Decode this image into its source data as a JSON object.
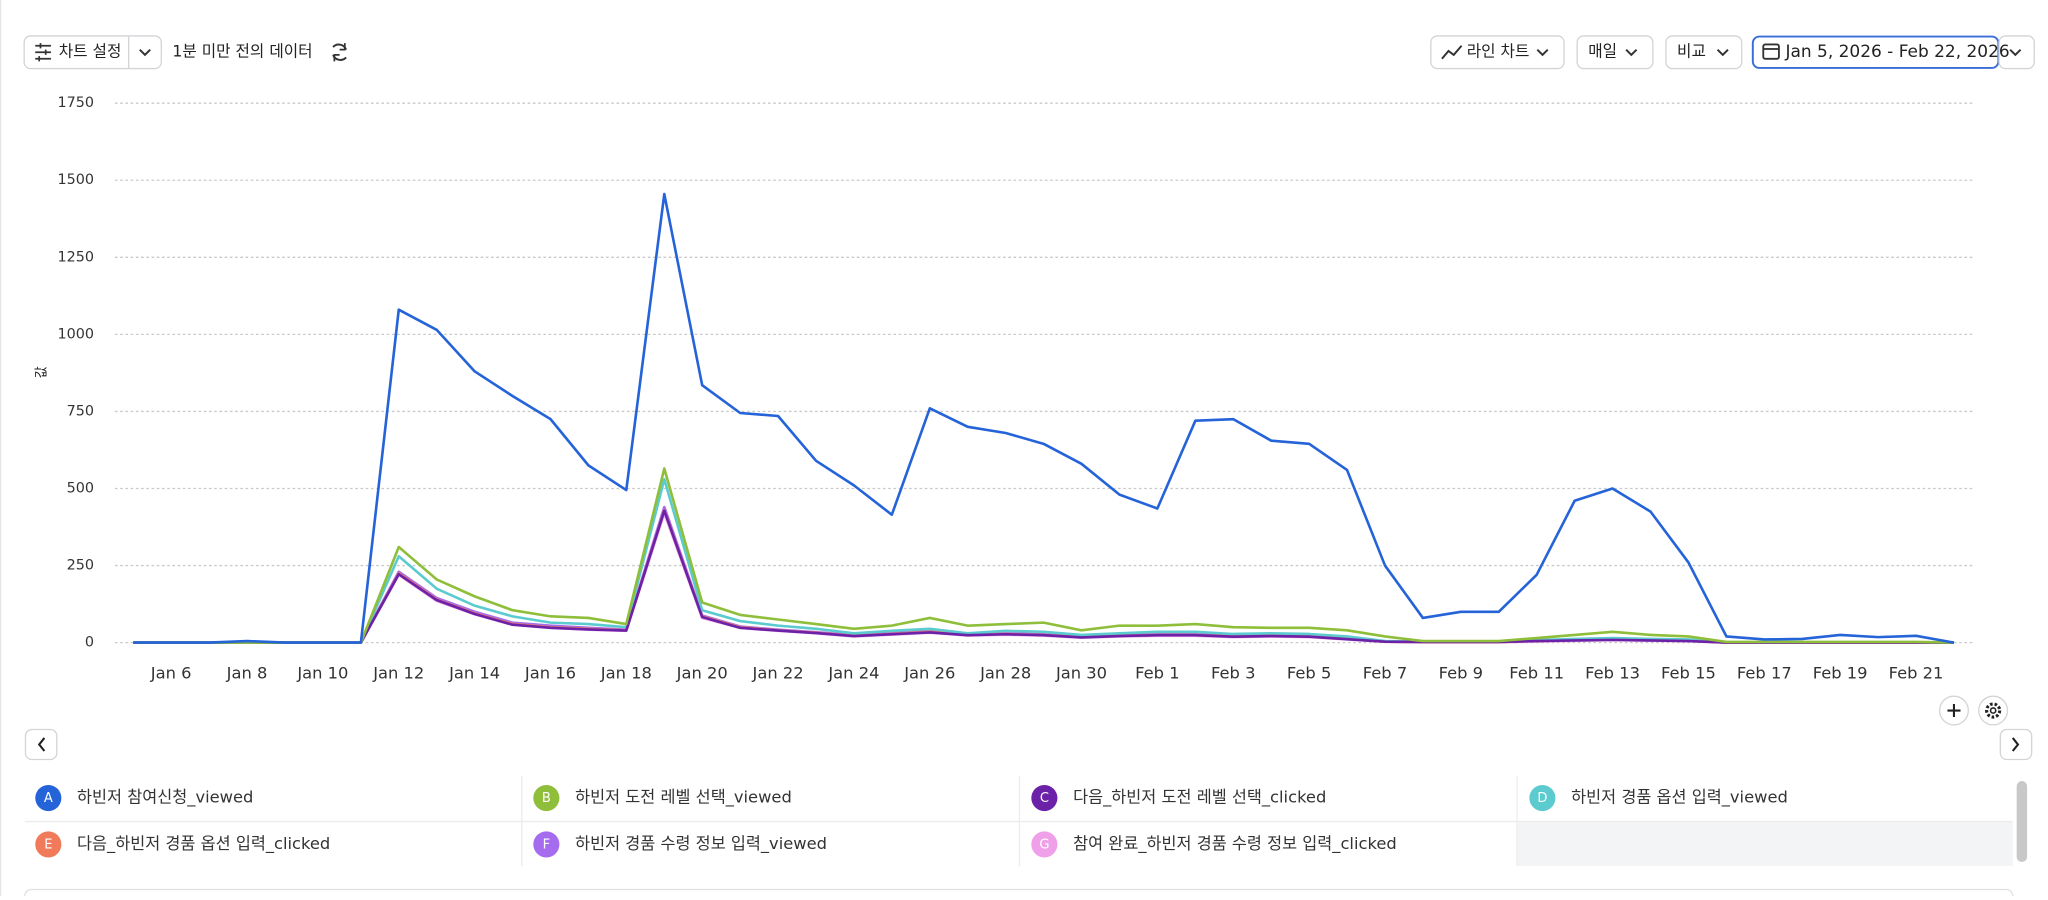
{
  "toolbar": {
    "chart_settings": "차트 설정",
    "freshness": "1분 미만 전의 데이터",
    "chart_type": "라인 차트",
    "interval": "매일",
    "compare": "비교",
    "date_range": "Jan 5, 2026 - Feb 22, 2026"
  },
  "chart_data": {
    "type": "line",
    "y_label": "값",
    "ylim": [
      0,
      1750
    ],
    "yticks": [
      0,
      250,
      500,
      750,
      1000,
      1250,
      1500,
      1750
    ],
    "grid": true,
    "categories": [
      null,
      "Jan 6",
      null,
      "Jan 8",
      null,
      "Jan 10",
      null,
      "Jan 12",
      null,
      "Jan 14",
      null,
      "Jan 16",
      null,
      "Jan 18",
      null,
      "Jan 20",
      null,
      "Jan 22",
      null,
      "Jan 24",
      null,
      "Jan 26",
      null,
      "Jan 28",
      null,
      "Jan 30",
      null,
      "Feb 1",
      null,
      "Feb 3",
      null,
      "Feb 5",
      null,
      "Feb 7",
      null,
      "Feb 9",
      null,
      "Feb 11",
      null,
      "Feb 13",
      null,
      "Feb 15",
      null,
      "Feb 17",
      null,
      "Feb 19",
      null,
      "Feb 21",
      null
    ],
    "series": [
      {
        "badge": "A",
        "name": "하빈저 참여신청_viewed",
        "color": "#2563d8",
        "values": [
          0,
          0,
          0,
          5,
          0,
          0,
          0,
          1080,
          1015,
          880,
          800,
          725,
          575,
          495,
          1455,
          835,
          745,
          735,
          590,
          510,
          415,
          760,
          700,
          680,
          645,
          580,
          480,
          435,
          720,
          725,
          655,
          645,
          560,
          250,
          80,
          100,
          100,
          220,
          460,
          500,
          425,
          260,
          20,
          10,
          12,
          25,
          18,
          22,
          0
        ]
      },
      {
        "badge": "B",
        "name": "하빈저 도전 레벨 선택_viewed",
        "color": "#8fbf3a",
        "values": [
          0,
          0,
          0,
          0,
          0,
          0,
          0,
          310,
          205,
          150,
          105,
          85,
          80,
          60,
          565,
          130,
          90,
          75,
          60,
          45,
          55,
          80,
          55,
          60,
          65,
          40,
          55,
          55,
          60,
          50,
          48,
          48,
          40,
          20,
          5,
          5,
          5,
          15,
          25,
          35,
          25,
          20,
          2,
          2,
          2,
          2,
          2,
          2,
          0
        ]
      },
      {
        "badge": "C",
        "name": "다음_하빈저 도전 레벨 선택_clicked",
        "color": "#6b21a8",
        "values": [
          0,
          0,
          0,
          0,
          0,
          0,
          0,
          222,
          138,
          93,
          58,
          48,
          43,
          39,
          428,
          83,
          48,
          39,
          31,
          21,
          27,
          33,
          24,
          27,
          24,
          17,
          21,
          24,
          24,
          19,
          21,
          19,
          11,
          3,
          2,
          2,
          2,
          5,
          7,
          9,
          7,
          5,
          0,
          0,
          0,
          0,
          0,
          0,
          0
        ]
      },
      {
        "badge": "D",
        "name": "하빈저 경품 옵션 입력_viewed",
        "color": "#5ccbd0",
        "values": [
          0,
          0,
          0,
          0,
          0,
          0,
          0,
          280,
          175,
          120,
          85,
          65,
          60,
          50,
          530,
          105,
          70,
          55,
          45,
          30,
          38,
          45,
          30,
          38,
          35,
          25,
          30,
          35,
          35,
          28,
          30,
          28,
          20,
          5,
          3,
          3,
          3,
          8,
          12,
          15,
          12,
          10,
          1,
          1,
          1,
          1,
          1,
          1,
          0
        ]
      },
      {
        "badge": "E",
        "name": "다음_하빈저 경품 옵션 입력_clicked",
        "color": "#f07a5a",
        "values": [
          0,
          0,
          0,
          0,
          0,
          0,
          0,
          225,
          140,
          95,
          60,
          50,
          45,
          40,
          430,
          85,
          50,
          40,
          32,
          22,
          28,
          35,
          25,
          28,
          25,
          18,
          22,
          25,
          25,
          20,
          22,
          20,
          12,
          3,
          2,
          2,
          2,
          5,
          8,
          10,
          8,
          6,
          0,
          0,
          0,
          0,
          0,
          0,
          0
        ]
      },
      {
        "badge": "F",
        "name": "하빈저 경품 수령 정보 입력_viewed",
        "color": "#a66cf0",
        "values": [
          0,
          0,
          0,
          0,
          0,
          0,
          0,
          230,
          145,
          100,
          65,
          55,
          48,
          42,
          440,
          88,
          52,
          42,
          34,
          24,
          30,
          38,
          27,
          30,
          27,
          20,
          24,
          27,
          27,
          22,
          24,
          22,
          14,
          4,
          2,
          2,
          2,
          6,
          9,
          11,
          9,
          7,
          0,
          0,
          0,
          0,
          0,
          0,
          0
        ]
      },
      {
        "badge": "G",
        "name": "참여 완료_하빈저 경품 수령 정보 입력_clicked",
        "color": "#f0a0e8",
        "values": [
          0,
          0,
          0,
          0,
          0,
          0,
          0,
          220,
          135,
          92,
          58,
          48,
          42,
          38,
          420,
          80,
          48,
          38,
          30,
          20,
          26,
          32,
          23,
          26,
          23,
          16,
          20,
          22,
          22,
          18,
          20,
          18,
          10,
          3,
          1,
          1,
          1,
          4,
          6,
          8,
          6,
          5,
          0,
          0,
          0,
          0,
          0,
          0,
          0
        ]
      }
    ]
  }
}
